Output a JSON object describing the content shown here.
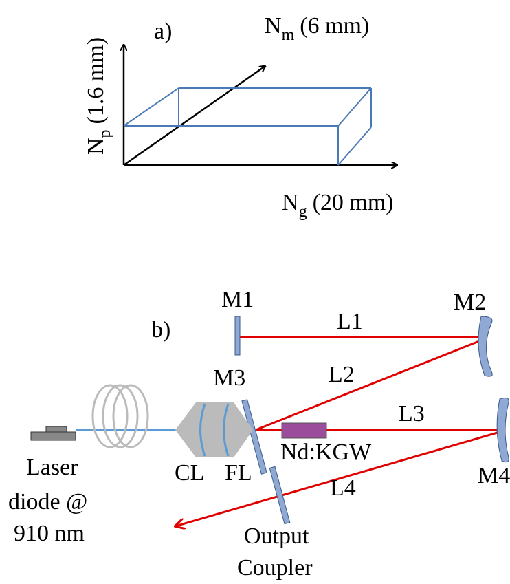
{
  "panel_a": {
    "label": "a)",
    "axes": [
      {
        "symbol": "N",
        "subscript": "m",
        "size": "(6 mm)"
      },
      {
        "symbol": "N",
        "subscript": "p",
        "size": "(1.6 mm)"
      },
      {
        "symbol": "N",
        "subscript": "g",
        "size": "(20 mm)"
      }
    ]
  },
  "panel_b": {
    "label": "b)",
    "mirrors": [
      "M1",
      "M2",
      "M3",
      "M4"
    ],
    "paths": [
      "L1",
      "L2",
      "L3",
      "L4"
    ],
    "lenses": [
      "CL",
      "FL"
    ],
    "crystal": "Nd:KGW",
    "source": [
      "Laser",
      "diode @",
      "910 nm"
    ],
    "output_coupler": [
      "Output",
      "Coupler"
    ]
  }
}
